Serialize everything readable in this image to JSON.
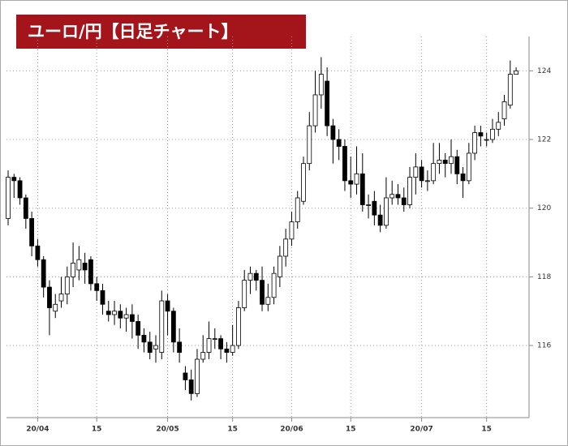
{
  "chart_data": {
    "type": "candlestick",
    "title": "ユーロ/円【日足チャート】",
    "categories": [
      null,
      null,
      null,
      null,
      null,
      "20/04",
      null,
      null,
      null,
      null,
      null,
      null,
      null,
      null,
      null,
      "15",
      null,
      null,
      null,
      null,
      null,
      null,
      null,
      null,
      null,
      null,
      null,
      "20/05",
      null,
      null,
      null,
      null,
      null,
      null,
      null,
      null,
      null,
      null,
      "15",
      null,
      null,
      null,
      null,
      null,
      null,
      null,
      null,
      null,
      "20/06",
      null,
      null,
      null,
      null,
      null,
      null,
      null,
      null,
      null,
      "15",
      null,
      null,
      null,
      null,
      null,
      null,
      null,
      null,
      null,
      null,
      null,
      "20/07",
      null,
      null,
      null,
      null,
      null,
      null,
      null,
      null,
      null,
      null,
      "15",
      null,
      null,
      null,
      null,
      null
    ],
    "open": [
      119.7,
      120.9,
      120.8,
      120.3,
      119.7,
      118.9,
      118.5,
      117.7,
      117.0,
      117.3,
      117.5,
      118.0,
      118.2,
      118.4,
      118.5,
      117.8,
      117.6,
      117.0,
      116.9,
      117.0,
      116.8,
      116.9,
      116.7,
      116.3,
      116.1,
      115.9,
      115.8,
      117.3,
      117.0,
      116.1,
      115.2,
      115.0,
      114.6,
      115.6,
      115.8,
      116.2,
      116.2,
      115.9,
      115.8,
      116.0,
      117.1,
      117.9,
      118.1,
      117.9,
      117.2,
      117.4,
      118.0,
      118.6,
      119.1,
      119.6,
      120.2,
      121.3,
      122.4,
      123.3,
      123.7,
      122.4,
      122.0,
      121.8,
      120.8,
      120.7,
      121.0,
      120.1,
      120.2,
      119.8,
      119.5,
      120.3,
      120.4,
      120.3,
      120.1,
      120.9,
      121.2,
      120.8,
      120.8,
      121.3,
      121.4,
      121.3,
      121.5,
      121.0,
      120.8,
      121.6,
      122.2,
      122.0,
      122.0,
      122.3,
      122.6,
      123.0,
      123.9
    ],
    "high": [
      121.1,
      121.0,
      120.9,
      120.4,
      119.9,
      119.1,
      118.6,
      117.9,
      117.5,
      118.0,
      118.3,
      119.0,
      118.9,
      118.7,
      118.6,
      118.0,
      117.8,
      117.3,
      117.3,
      117.2,
      117.1,
      117.2,
      116.9,
      116.5,
      116.4,
      116.3,
      117.6,
      117.5,
      117.1,
      116.5,
      115.4,
      115.3,
      115.9,
      116.3,
      116.7,
      116.5,
      116.3,
      116.1,
      116.6,
      117.3,
      118.2,
      118.3,
      118.2,
      118.3,
      117.8,
      118.3,
      118.9,
      119.4,
      119.9,
      120.5,
      121.5,
      122.8,
      124.0,
      124.4,
      124.1,
      122.6,
      122.3,
      122.0,
      121.5,
      121.8,
      121.6,
      120.4,
      120.5,
      120.1,
      120.9,
      120.8,
      120.7,
      120.6,
      121.2,
      121.6,
      121.4,
      121.1,
      121.9,
      121.9,
      121.6,
      122.0,
      121.7,
      121.2,
      121.9,
      122.4,
      122.4,
      122.2,
      122.6,
      122.8,
      123.3,
      124.3,
      124.1
    ],
    "low": [
      119.5,
      120.3,
      120.1,
      119.4,
      118.6,
      118.3,
      117.4,
      116.3,
      116.8,
      117.1,
      117.2,
      117.7,
      117.9,
      117.8,
      117.6,
      117.3,
      116.9,
      116.7,
      116.6,
      116.5,
      116.4,
      116.2,
      115.9,
      115.8,
      115.6,
      115.5,
      115.6,
      116.3,
      115.8,
      115.5,
      114.7,
      114.4,
      114.5,
      115.5,
      115.6,
      115.9,
      115.6,
      115.5,
      115.7,
      115.9,
      117.0,
      117.5,
      117.6,
      117.0,
      117.0,
      117.2,
      117.7,
      118.3,
      118.9,
      119.4,
      120.1,
      121.1,
      122.2,
      122.9,
      122.1,
      121.3,
      121.4,
      120.5,
      120.3,
      120.4,
      119.9,
      119.7,
      119.5,
      119.3,
      119.4,
      120.1,
      120.1,
      119.9,
      120.0,
      120.4,
      120.6,
      120.5,
      120.7,
      121.0,
      120.9,
      121.0,
      120.7,
      120.3,
      120.7,
      121.4,
      121.8,
      121.8,
      121.9,
      122.1,
      122.4,
      122.9,
      123.9
    ],
    "close": [
      120.9,
      120.8,
      120.3,
      119.7,
      118.9,
      118.5,
      117.7,
      117.1,
      117.2,
      117.5,
      118.0,
      118.4,
      118.5,
      118.2,
      117.8,
      117.6,
      117.2,
      116.9,
      117.0,
      116.8,
      116.9,
      116.7,
      116.3,
      116.1,
      115.8,
      116.0,
      117.3,
      117.0,
      116.1,
      115.8,
      115.0,
      114.6,
      115.6,
      115.8,
      116.2,
      116.2,
      115.9,
      115.8,
      116.0,
      117.1,
      117.9,
      118.1,
      117.9,
      117.2,
      117.4,
      118.1,
      118.6,
      119.1,
      119.6,
      120.3,
      121.3,
      122.4,
      123.3,
      123.9,
      122.4,
      122.0,
      121.8,
      120.8,
      120.7,
      121.0,
      120.1,
      120.1,
      119.8,
      119.5,
      120.3,
      120.4,
      120.3,
      120.1,
      120.9,
      121.2,
      120.8,
      120.8,
      121.3,
      121.4,
      121.3,
      121.5,
      121.0,
      120.8,
      121.6,
      122.2,
      122.1,
      122.0,
      122.3,
      122.5,
      123.1,
      123.9,
      124.0
    ],
    "up_color": "#ffffff",
    "down_color": "#000000",
    "ylim": [
      113.9,
      125.0
    ],
    "yticks": [
      116,
      118,
      120,
      122,
      124
    ],
    "grid": true
  }
}
